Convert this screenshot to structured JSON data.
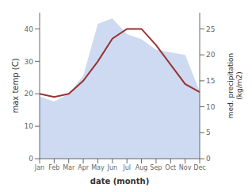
{
  "chart_data": {
    "type": "line",
    "categories": [
      "Jan",
      "Feb",
      "Mar",
      "Apr",
      "May",
      "Jun",
      "Jul",
      "Aug",
      "Sep",
      "Oct",
      "Nov",
      "Dec"
    ],
    "xlabel": "date (month)",
    "ylabel": "max temp (C)",
    "y2label": "med. precipitation\n(kg/m2)",
    "series": [
      {
        "type": "area",
        "axis": "y2",
        "color": "#c5d4ee",
        "values": [
          12.0,
          11.0,
          12.5,
          16.0,
          26.0,
          27.0,
          24.0,
          23.0,
          21.0,
          20.5,
          20.0,
          13.0
        ]
      },
      {
        "type": "line",
        "color": "#993333",
        "values": [
          20.0,
          19.0,
          20.0,
          24.0,
          30.0,
          37.0,
          40.0,
          40.0,
          35.0,
          29.0,
          23.0,
          20.5
        ]
      }
    ],
    "ylim": [
      0,
      45
    ],
    "yticks": [
      0,
      10,
      20,
      30,
      40
    ],
    "y2lim": [
      0,
      28.125
    ],
    "y2ticks": [
      0,
      5,
      10,
      15,
      20,
      25
    ]
  }
}
